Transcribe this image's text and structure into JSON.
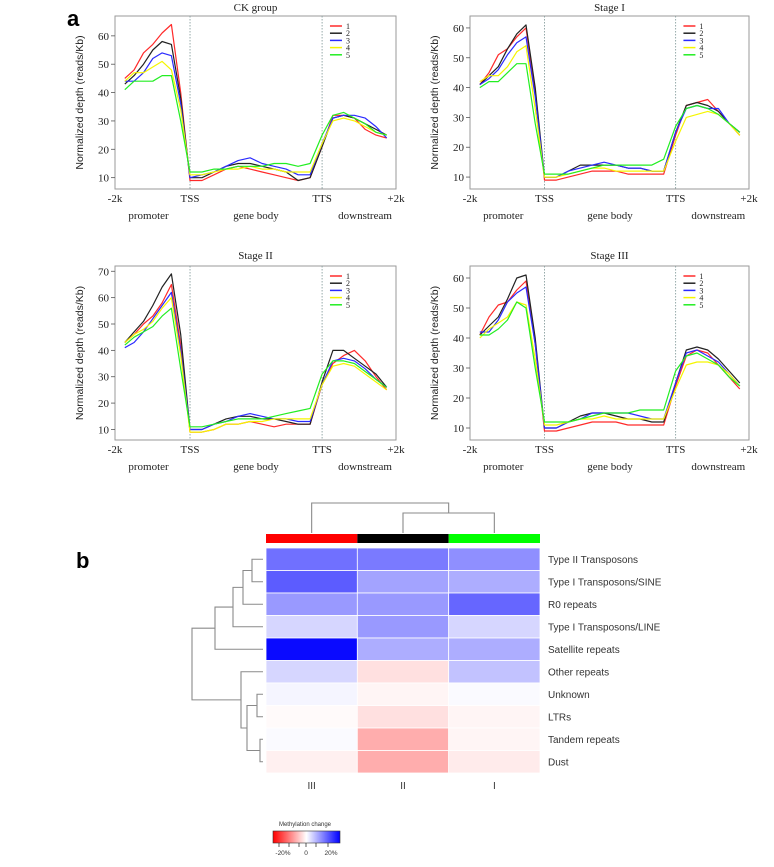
{
  "figure": {
    "panel_a_label": "a",
    "panel_b_label": "b"
  },
  "chart_data": [
    {
      "type": "line",
      "title": "CK  group",
      "ylabel": "Normalized depth (reads/Kb)",
      "xlabel": "",
      "x_ticks": [
        "-2k",
        "TSS",
        "TTS",
        "+2k"
      ],
      "region_labels": [
        "promoter",
        "gene body",
        "downstream"
      ],
      "yticks": [
        10,
        20,
        30,
        40,
        50,
        60
      ],
      "ylim": [
        6,
        67
      ],
      "legend": {
        "placement": "top-right",
        "entries": [
          "1",
          "2",
          "3",
          "4",
          "5"
        ]
      },
      "x_note": "values sampled at 25 evenly spaced positions from -2k to +2k (TSS at position 7, TTS at position 18)",
      "series": [
        {
          "name": "1",
          "color": "#ff2a2a",
          "values": [
            45,
            48,
            54,
            57,
            61,
            64,
            40,
            9,
            9,
            11,
            13,
            14,
            13,
            12,
            11,
            10,
            9,
            10,
            21,
            32,
            32,
            31,
            27,
            25,
            24
          ]
        },
        {
          "name": "2",
          "color": "#222222",
          "values": [
            43,
            46,
            50,
            55,
            58,
            57,
            38,
            10,
            10,
            12,
            14,
            15,
            15,
            14,
            13,
            12,
            9,
            10,
            21,
            31,
            32,
            31,
            29,
            27,
            25
          ]
        },
        {
          "name": "3",
          "color": "#2a2aff",
          "values": [
            44,
            44,
            47,
            52,
            54,
            53,
            36,
            10,
            11,
            12,
            14,
            16,
            17,
            15,
            14,
            13,
            11,
            11,
            22,
            31,
            32,
            32,
            31,
            28,
            24
          ]
        },
        {
          "name": "4",
          "color": "#f5f500",
          "values": [
            44,
            47,
            47,
            49,
            51,
            48,
            34,
            11,
            11,
            12,
            13,
            13,
            14,
            13,
            13,
            12,
            12,
            12,
            22,
            30,
            31,
            30,
            28,
            26,
            25
          ]
        },
        {
          "name": "5",
          "color": "#22ee22",
          "values": [
            41,
            44,
            44,
            44,
            46,
            46,
            30,
            12,
            12,
            13,
            13,
            14,
            14,
            14,
            15,
            15,
            14,
            15,
            25,
            32,
            33,
            31,
            29,
            26,
            25
          ]
        }
      ]
    },
    {
      "type": "line",
      "title": "Stage I",
      "ylabel": "Normalized depth (reads/Kb)",
      "xlabel": "",
      "x_ticks": [
        "-2k",
        "TSS",
        "TTS",
        "+2k"
      ],
      "region_labels": [
        "promoter",
        "gene body",
        "downstream"
      ],
      "yticks": [
        10,
        20,
        30,
        40,
        50,
        60
      ],
      "ylim": [
        6,
        64
      ],
      "legend": {
        "placement": "top-right",
        "entries": [
          "1",
          "2",
          "3",
          "4",
          "5"
        ]
      },
      "x_note": "values sampled at 25 evenly spaced positions from -2k to +2k (TSS at position 7, TTS at position 18)",
      "series": [
        {
          "name": "1",
          "color": "#ff2a2a",
          "values": [
            41,
            45,
            51,
            53,
            57,
            60,
            38,
            9,
            9,
            10,
            11,
            12,
            12,
            12,
            11,
            11,
            11,
            11,
            24,
            34,
            35,
            36,
            32,
            28,
            24
          ]
        },
        {
          "name": "2",
          "color": "#222222",
          "values": [
            41,
            44,
            47,
            53,
            58,
            61,
            40,
            10,
            10,
            12,
            14,
            14,
            14,
            14,
            13,
            13,
            12,
            12,
            25,
            34,
            35,
            34,
            32,
            28,
            25
          ]
        },
        {
          "name": "3",
          "color": "#2a2aff",
          "values": [
            41,
            43,
            46,
            51,
            55,
            57,
            37,
            10,
            10,
            12,
            13,
            14,
            15,
            14,
            13,
            13,
            12,
            12,
            25,
            33,
            34,
            33,
            33,
            28,
            25
          ]
        },
        {
          "name": "4",
          "color": "#f5f500",
          "values": [
            42,
            44,
            44,
            47,
            52,
            54,
            33,
            10,
            10,
            11,
            12,
            13,
            13,
            12,
            12,
            12,
            12,
            12,
            22,
            30,
            31,
            32,
            31,
            28,
            24
          ]
        },
        {
          "name": "5",
          "color": "#22ee22",
          "values": [
            40,
            42,
            42,
            45,
            48,
            48,
            28,
            11,
            11,
            11,
            12,
            13,
            14,
            14,
            14,
            14,
            14,
            16,
            27,
            33,
            34,
            33,
            31,
            28,
            25
          ]
        }
      ]
    },
    {
      "type": "line",
      "title": "Stage II",
      "ylabel": "Normalized depth (reads/Kb)",
      "xlabel": "",
      "x_ticks": [
        "-2k",
        "TSS",
        "TTS",
        "+2k"
      ],
      "region_labels": [
        "promoter",
        "gene body",
        "downstream"
      ],
      "yticks": [
        10,
        20,
        30,
        40,
        50,
        60,
        70
      ],
      "ylim": [
        6,
        72
      ],
      "legend": {
        "placement": "top-right",
        "entries": [
          "1",
          "2",
          "3",
          "4",
          "5"
        ]
      },
      "x_note": "values sampled at 25 evenly spaced positions from -2k to +2k (TSS at position 7, TTS at position 18)",
      "series": [
        {
          "name": "1",
          "color": "#ff2a2a",
          "values": [
            43,
            46,
            50,
            53,
            58,
            65,
            42,
            9,
            9,
            10,
            12,
            12,
            13,
            12,
            11,
            12,
            12,
            12,
            27,
            35,
            38,
            40,
            36,
            30,
            25
          ]
        },
        {
          "name": "2",
          "color": "#222222",
          "values": [
            43,
            47,
            51,
            57,
            64,
            69,
            46,
            10,
            10,
            12,
            14,
            15,
            15,
            14,
            14,
            13,
            12,
            12,
            28,
            40,
            40,
            37,
            34,
            31,
            26
          ]
        },
        {
          "name": "3",
          "color": "#2a2aff",
          "values": [
            41,
            43,
            47,
            52,
            57,
            62,
            40,
            10,
            10,
            12,
            13,
            15,
            16,
            15,
            14,
            14,
            13,
            13,
            27,
            36,
            37,
            36,
            33,
            29,
            26
          ]
        },
        {
          "name": "4",
          "color": "#f5f500",
          "values": [
            43,
            46,
            48,
            51,
            56,
            60,
            38,
            9,
            9,
            10,
            12,
            12,
            13,
            13,
            14,
            14,
            14,
            14,
            27,
            34,
            35,
            34,
            31,
            28,
            25
          ]
        },
        {
          "name": "5",
          "color": "#22ee22",
          "values": [
            42,
            45,
            47,
            49,
            53,
            56,
            33,
            11,
            11,
            12,
            13,
            14,
            14,
            14,
            15,
            16,
            17,
            18,
            31,
            36,
            36,
            35,
            32,
            29,
            26
          ]
        }
      ]
    },
    {
      "type": "line",
      "title": "Stage III",
      "ylabel": "Normalized depth (reads/Kb)",
      "xlabel": "",
      "x_ticks": [
        "-2k",
        "TSS",
        "TTS",
        "+2k"
      ],
      "region_labels": [
        "promoter",
        "gene body",
        "downstream"
      ],
      "yticks": [
        10,
        20,
        30,
        40,
        50,
        60
      ],
      "ylim": [
        6,
        64
      ],
      "legend": {
        "placement": "top-right",
        "entries": [
          "1",
          "2",
          "3",
          "4",
          "5"
        ]
      },
      "x_note": "values sampled at 25 evenly spaced positions from -2k to +2k (TSS at position 7, TTS at position 18)",
      "series": [
        {
          "name": "1",
          "color": "#ff2a2a",
          "values": [
            41,
            47,
            51,
            52,
            56,
            59,
            38,
            9,
            9,
            10,
            11,
            12,
            12,
            12,
            11,
            11,
            11,
            11,
            24,
            34,
            36,
            35,
            31,
            27,
            23
          ]
        },
        {
          "name": "2",
          "color": "#222222",
          "values": [
            41,
            44,
            47,
            53,
            60,
            61,
            40,
            10,
            10,
            12,
            14,
            15,
            15,
            14,
            13,
            13,
            12,
            12,
            25,
            36,
            37,
            36,
            33,
            29,
            25
          ]
        },
        {
          "name": "3",
          "color": "#2a2aff",
          "values": [
            42,
            42,
            46,
            52,
            55,
            57,
            38,
            10,
            10,
            12,
            13,
            15,
            15,
            15,
            15,
            14,
            13,
            13,
            25,
            35,
            36,
            34,
            32,
            28,
            24
          ]
        },
        {
          "name": "4",
          "color": "#f5f500",
          "values": [
            40,
            43,
            45,
            47,
            52,
            51,
            33,
            11,
            11,
            12,
            13,
            13,
            14,
            13,
            13,
            13,
            13,
            13,
            23,
            31,
            32,
            32,
            31,
            28,
            24
          ]
        },
        {
          "name": "5",
          "color": "#22ee22",
          "values": [
            41,
            41,
            43,
            46,
            52,
            50,
            30,
            12,
            12,
            12,
            13,
            14,
            15,
            15,
            15,
            16,
            16,
            16,
            29,
            34,
            35,
            33,
            31,
            27,
            24
          ]
        }
      ]
    },
    {
      "type": "heatmap",
      "title": "",
      "columns": [
        "III",
        "II",
        "I"
      ],
      "column_group_colors": [
        "#ff0000",
        "#000000",
        "#00ff00"
      ],
      "rows": [
        "Type II Transposons",
        "Type I Transposons/SINE",
        "R0 repeats",
        "Type I Transposons/LINE",
        "Satellite repeats",
        "Other repeats",
        "Unknown",
        "LTRs",
        "Tandem repeats",
        "Dust"
      ],
      "value_unit": "% methylation change",
      "values": [
        [
          14,
          13,
          11
        ],
        [
          16,
          9,
          8
        ],
        [
          10,
          10,
          15
        ],
        [
          4,
          10,
          4
        ],
        [
          24,
          8,
          8
        ],
        [
          4,
          -3,
          6
        ],
        [
          1,
          -1,
          0.5
        ],
        [
          -0.5,
          -3,
          -1
        ],
        [
          0.5,
          -8,
          -1
        ],
        [
          -1.5,
          -8,
          -2
        ]
      ],
      "colorbar": {
        "title": "Methylation change",
        "ticks": [
          "-20%",
          "0",
          "20%"
        ],
        "range": [
          -25,
          25
        ],
        "low_color": "#ff0000",
        "mid_color": "#ffffff",
        "high_color": "#0000ff"
      },
      "row_dendrogram": true,
      "column_dendrogram": true
    }
  ]
}
